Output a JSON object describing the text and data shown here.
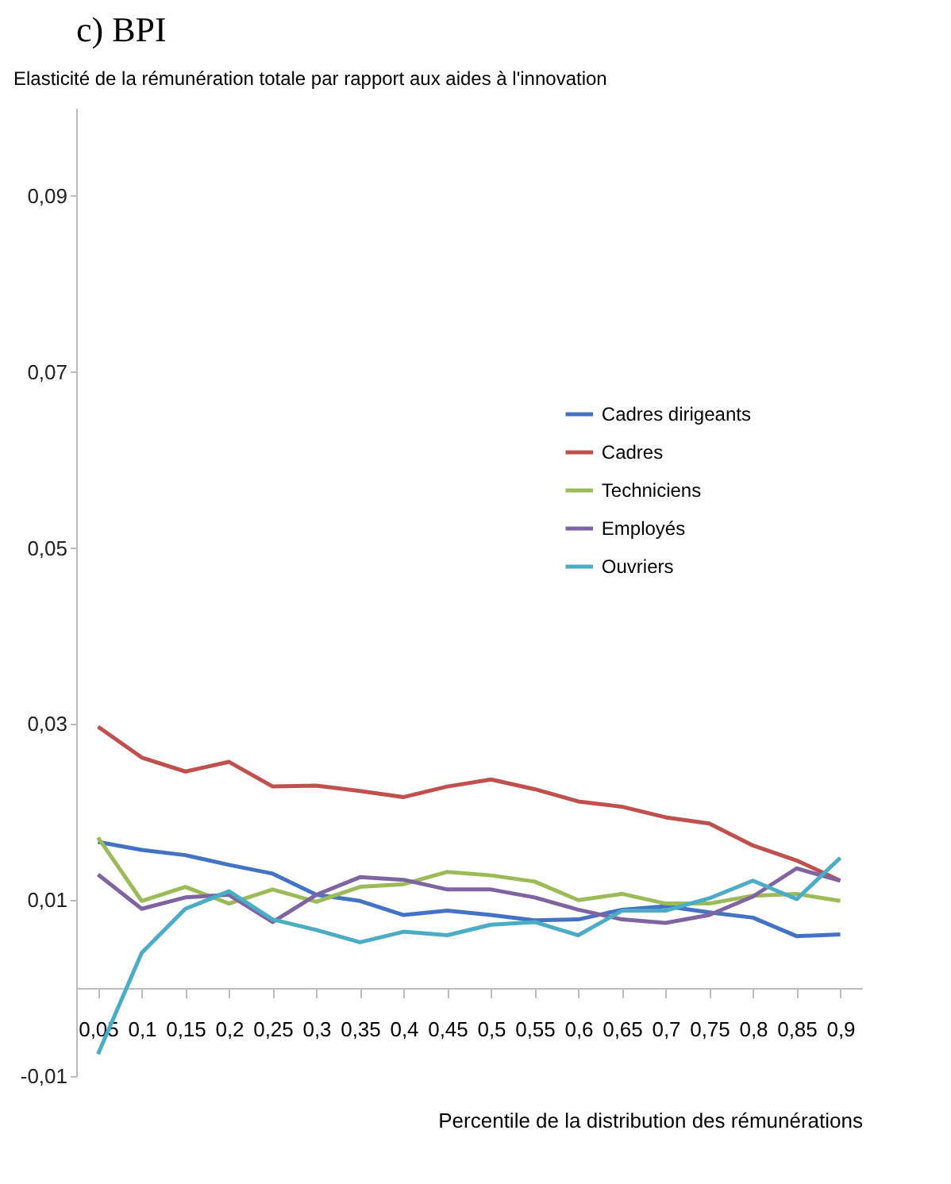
{
  "chart_data": {
    "type": "line",
    "title": "c)    BPI",
    "ylabel": "Elasticité de la rémunération totale par rapport aux aides à l'innovation",
    "xlabel": "Percentile de la distribution des rémunérations",
    "categories": [
      "0,05",
      "0,1",
      "0,15",
      "0,2",
      "0,25",
      "0,3",
      "0,35",
      "0,4",
      "0,45",
      "0,5",
      "0,55",
      "0,6",
      "0,65",
      "0,7",
      "0,75",
      "0,8",
      "0,85",
      "0,9"
    ],
    "series": [
      {
        "name": "Cadres dirigeants",
        "color": "#4472c4",
        "values": [
          0.0166,
          0.0157,
          0.0151,
          0.014,
          0.013,
          0.0106,
          0.0099,
          0.0083,
          0.0088,
          0.0083,
          0.0077,
          0.0078,
          0.0089,
          0.0093,
          0.0086,
          0.008,
          0.0059,
          0.0061
        ]
      },
      {
        "name": "Cadres",
        "color": "#c0504d",
        "values": [
          0.0297,
          0.0262,
          0.0246,
          0.0257,
          0.0229,
          0.023,
          0.0224,
          0.0217,
          0.0229,
          0.0237,
          0.0226,
          0.0212,
          0.0206,
          0.0194,
          0.0187,
          0.0162,
          0.0145,
          0.0122
        ]
      },
      {
        "name": "Techniciens",
        "color": "#9bbb59",
        "values": [
          0.0171,
          0.0099,
          0.0115,
          0.0096,
          0.0112,
          0.0098,
          0.0115,
          0.0118,
          0.0132,
          0.0128,
          0.0121,
          0.01,
          0.0107,
          0.0096,
          0.0096,
          0.0105,
          0.0107,
          0.0099
        ]
      },
      {
        "name": "Employés",
        "color": "#8064a2",
        "values": [
          0.0129,
          0.009,
          0.0103,
          0.0106,
          0.0075,
          0.0106,
          0.0126,
          0.0123,
          0.0112,
          0.0112,
          0.0103,
          0.0089,
          0.0078,
          0.0074,
          0.0083,
          0.0104,
          0.0136,
          0.0122
        ]
      },
      {
        "name": "Ouvriers",
        "color": "#4bacc6",
        "values": [
          -0.0075,
          0.004,
          0.009,
          0.011,
          0.0078,
          0.0066,
          0.0052,
          0.0064,
          0.006,
          0.0072,
          0.0075,
          0.006,
          0.0088,
          0.0088,
          0.0102,
          0.0122,
          0.0101,
          0.0148
        ]
      }
    ],
    "ylim": [
      -0.01,
      0.1
    ],
    "yticks": [
      {
        "value": -0.01,
        "label": "-0,01"
      },
      {
        "value": 0.01,
        "label": "0,01"
      },
      {
        "value": 0.03,
        "label": "0,03"
      },
      {
        "value": 0.05,
        "label": "0,05"
      },
      {
        "value": 0.07,
        "label": "0,07"
      },
      {
        "value": 0.09,
        "label": "0,09"
      }
    ],
    "legend": "right",
    "grid": false,
    "marker": "none",
    "line_style": "solid"
  }
}
